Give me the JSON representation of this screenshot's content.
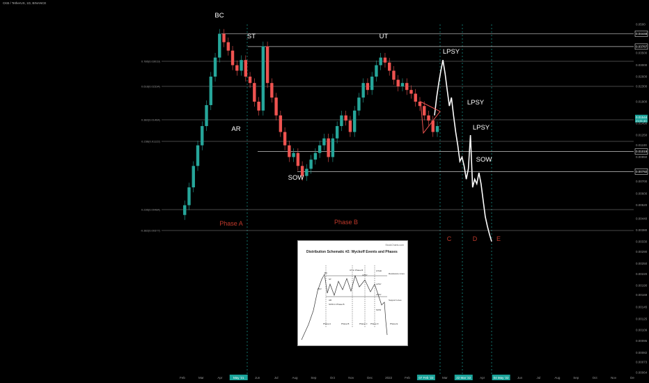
{
  "header": {
    "symbol": "CKB / TetherUS, 1D, BINANCE"
  },
  "colors": {
    "bg": "#000000",
    "up": "#26a69a",
    "down": "#ef5350",
    "level": "#c9c9c9",
    "phase": "#c0392b",
    "price_tag": "#1aa39a"
  },
  "annotations": {
    "wyckoff": [
      "BC",
      "ST",
      "UT",
      "LPSY",
      "AR",
      "SOW",
      "LPSY",
      "LPSY",
      "SOW"
    ],
    "phases": [
      "Phase A",
      "Phase B",
      "C",
      "D",
      "E"
    ]
  },
  "fib_levels": [
    {
      "label": "0.786(0.03019)"
    },
    {
      "label": "0.618(0.02334)"
    },
    {
      "label": "0.382(0.01464)"
    },
    {
      "label": "0.236(0.01122)"
    },
    {
      "label": "0.236(0.00484)"
    },
    {
      "label": "-0.382(0.00377)"
    }
  ],
  "chart_data": {
    "type": "line",
    "title": "CKB / TetherUS, 1D, BINANCE",
    "xlabel": "",
    "ylabel": "",
    "y_scale": "log",
    "ylim": [
      0.00064,
      0.05
    ],
    "x_ticks": [
      "Feb",
      "Mar",
      "Apr",
      "May '21",
      "Jun",
      "Jul",
      "Aug",
      "Sep",
      "Oct",
      "Nov",
      "Dec",
      "2022",
      "Feb",
      "07 Feb '22",
      "Mar",
      "22 Mar '22",
      "Apr",
      "04 May '22",
      "Jun",
      "Jul",
      "Aug",
      "Sep",
      "Oct",
      "Nov",
      "De"
    ],
    "y_ticks": [
      "0.0500",
      "0.04448",
      "0.03787",
      "0.03500",
      "0.03000",
      "0.02600",
      "0.02300",
      "0.01900",
      "0.01544",
      "0.01450",
      "0.01250",
      "0.01100",
      "0.01019",
      "0.00950",
      "0.00792",
      "0.00700",
      "0.00600",
      "0.00520",
      "0.00440",
      "0.00380",
      "0.00330",
      "0.00290",
      "0.00250",
      "0.00220",
      "0.00190",
      "0.00169",
      "0.00145",
      "0.00125",
      "0.00109",
      "0.00095",
      "0.00082",
      "0.00073",
      "0.00064"
    ],
    "price_tags": [
      "0.04448",
      "0.03787",
      "0.01019",
      "0.00792"
    ],
    "last_price": "0.01544",
    "countdown": "21:51:40",
    "series": [
      {
        "values": [
          0.0046,
          0.0052,
          0.0065,
          0.0085,
          0.011,
          0.014,
          0.0182,
          0.026,
          0.033,
          0.04448,
          0.04,
          0.036,
          0.03,
          0.028,
          0.032,
          0.026,
          0.024,
          0.019,
          0.017,
          0.038,
          0.024,
          0.02,
          0.016,
          0.013,
          0.011,
          0.0095,
          0.01,
          0.0085,
          0.0075,
          0.0082,
          0.0092,
          0.01,
          0.011,
          0.012,
          0.0095,
          0.012,
          0.014,
          0.016,
          0.015,
          0.013,
          0.017,
          0.02,
          0.024,
          0.022,
          0.026,
          0.03,
          0.033,
          0.031,
          0.028,
          0.025,
          0.023,
          0.024,
          0.022,
          0.021,
          0.019,
          0.018,
          0.016,
          0.015,
          0.013,
          0.014
        ]
      },
      {
        "values": [
          0.016,
          0.02,
          0.024,
          0.028,
          0.032,
          0.027,
          0.022,
          0.018,
          0.02,
          0.016,
          0.013,
          0.011,
          0.009,
          0.0095,
          0.0085,
          0.0072,
          0.0082,
          0.0125,
          0.0065,
          0.0072,
          0.0068,
          0.0078,
          0.0068,
          0.0055,
          0.0045,
          0.004,
          0.0036,
          0.0033
        ]
      }
    ]
  },
  "inset": {
    "title": "Distribution Schematic #2: Wyckoff Events and Phases",
    "brand": "StockCharts.com",
    "labels": [
      "BC",
      "UT in Phase B",
      "LPSY",
      "Resistance Lines",
      "PSY",
      "ST",
      "AR",
      "SOW in Phase B",
      "UTAD",
      "LPSY",
      "Support Lines",
      "SOW",
      "LPSY",
      "Phase A",
      "Phase B",
      "Phase C",
      "Phase D",
      "Phase E"
    ]
  }
}
